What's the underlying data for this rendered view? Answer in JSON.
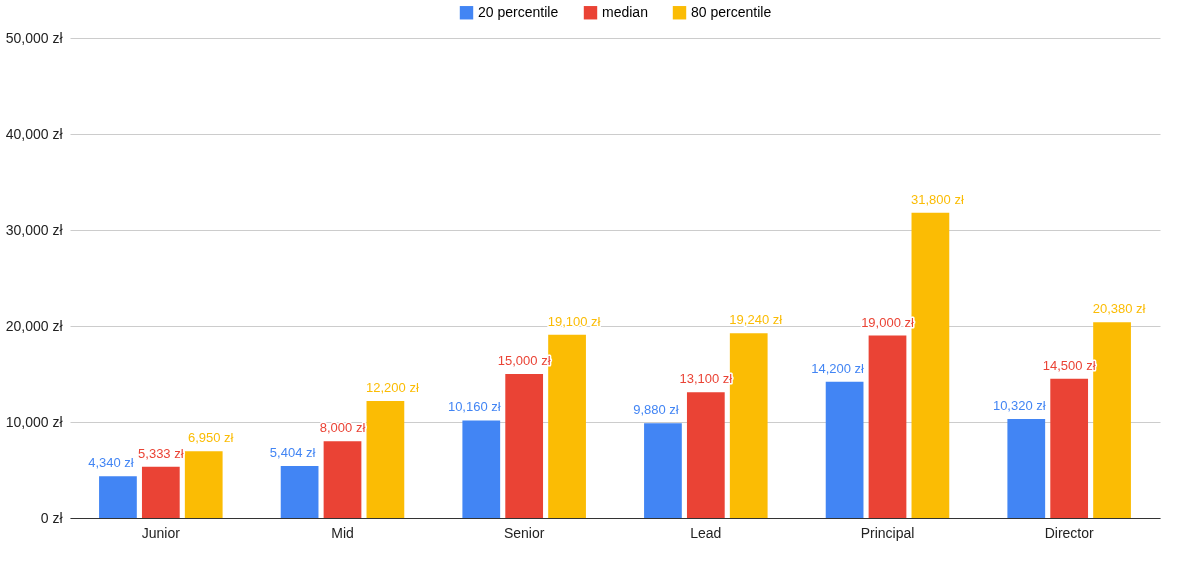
{
  "chart_data": {
    "type": "bar",
    "categories": [
      "Junior",
      "Mid",
      "Senior",
      "Lead",
      "Principal",
      "Director"
    ],
    "series": [
      {
        "name": "20 percentile",
        "color": "#4285f4",
        "values": [
          4340,
          5404,
          10160,
          9880,
          14200,
          10320
        ],
        "value_labels": [
          "4,340 zł",
          "5,404 zł",
          "10,160 zł",
          "9,880 zł",
          "14,200 zł",
          "10,320 zł"
        ]
      },
      {
        "name": "median",
        "color": "#ea4335",
        "values": [
          5333,
          8000,
          15000,
          13100,
          19000,
          14500
        ],
        "value_labels": [
          "5,333 zł",
          "8,000 zł",
          "15,000 zł",
          "13,100 zł",
          "19,000 zł",
          "14,500 zł"
        ]
      },
      {
        "name": "80 percentile",
        "color": "#fbbc04",
        "values": [
          6950,
          12200,
          19100,
          19240,
          31800,
          20380
        ],
        "value_labels": [
          "6,950 zł",
          "12,200 zł",
          "19,100 zł",
          "19,240 zł",
          "31,800 zł",
          "20,380 zł"
        ]
      }
    ],
    "ylim": [
      0,
      50000
    ],
    "yticks": [
      {
        "value": 0,
        "label": "0 zł"
      },
      {
        "value": 10000,
        "label": "10,000 zł"
      },
      {
        "value": 20000,
        "label": "20,000 zł"
      },
      {
        "value": 30000,
        "label": "30,000 zł"
      },
      {
        "value": 40000,
        "label": "40,000 zł"
      },
      {
        "value": 50000,
        "label": "50,000 zł"
      }
    ],
    "grid": "y",
    "legend": "top"
  }
}
